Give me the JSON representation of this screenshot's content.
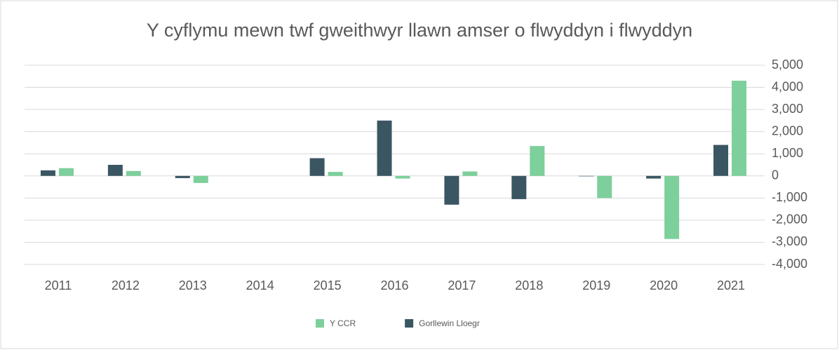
{
  "chart_data": {
    "type": "bar",
    "title": "Y cyflymu mewn twf gweithwyr llawn amser o flwyddyn i flwyddyn",
    "categories": [
      "2011",
      "2012",
      "2013",
      "2014",
      "2015",
      "2016",
      "2017",
      "2018",
      "2019",
      "2020",
      "2021"
    ],
    "series": [
      {
        "name": "Y CCR",
        "color": "#7dcf9b",
        "values": [
          350,
          220,
          -320,
          0,
          180,
          -120,
          200,
          1350,
          -1000,
          -2850,
          4300
        ]
      },
      {
        "name": "Gorllewin Lloegr",
        "color": "#3b5663",
        "values": [
          250,
          500,
          -100,
          0,
          800,
          2500,
          -1300,
          -1050,
          -20,
          -120,
          1400
        ]
      }
    ],
    "ylim": [
      -4000,
      5000
    ],
    "yticks": [
      {
        "value": -4000,
        "label": "-4,000"
      },
      {
        "value": -3000,
        "label": "-3,000"
      },
      {
        "value": -2000,
        "label": "-2,000"
      },
      {
        "value": -1000,
        "label": "-1,000"
      },
      0,
      {
        "value": 1000,
        "label": "1,000"
      },
      {
        "value": 2000,
        "label": "2,000"
      },
      {
        "value": 3000,
        "label": "3,000"
      },
      {
        "value": 4000,
        "label": "4,000"
      },
      {
        "value": 5000,
        "label": "5,000"
      }
    ],
    "grid": true,
    "legend": "bottom"
  }
}
